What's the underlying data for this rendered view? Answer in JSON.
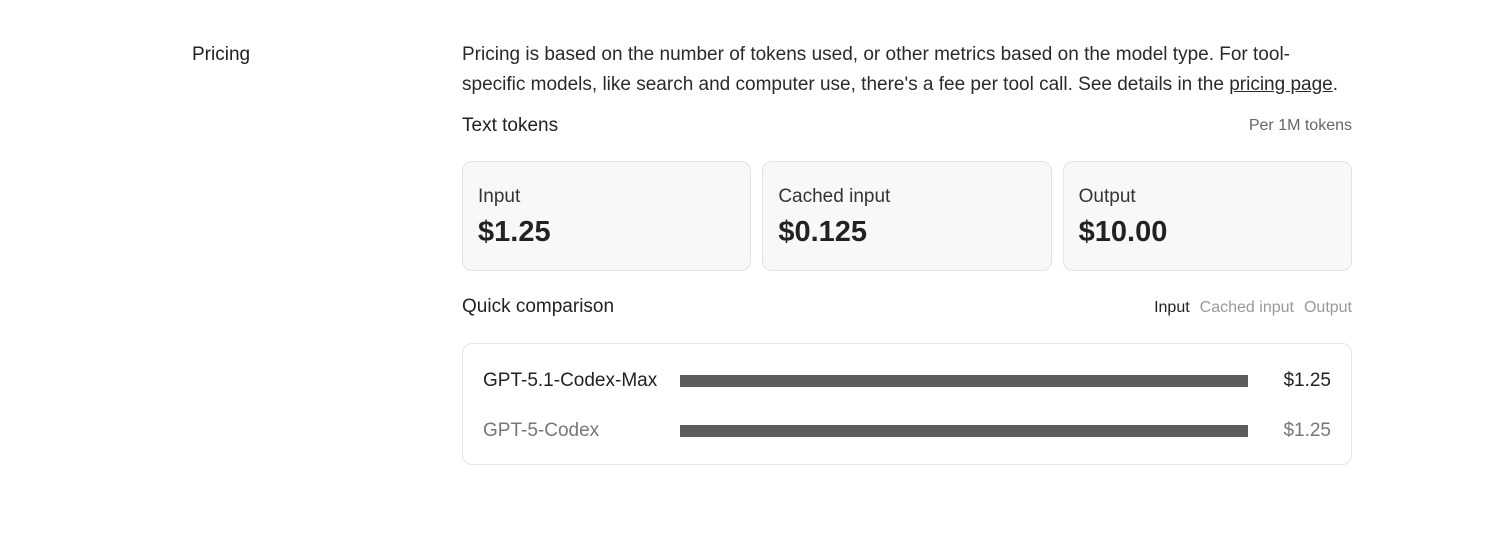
{
  "section_label": "Pricing",
  "description": {
    "text": "Pricing is based on the number of tokens used, or other metrics based on the model type. For tool-specific models, like search and computer use, there's a fee per tool call. See details in the ",
    "link": "pricing page",
    "end": "."
  },
  "text_tokens": {
    "title": "Text tokens",
    "unit": "Per 1M tokens",
    "cards": [
      {
        "label": "Input",
        "value": "$1.25"
      },
      {
        "label": "Cached input",
        "value": "$0.125"
      },
      {
        "label": "Output",
        "value": "$10.00"
      }
    ]
  },
  "comparison": {
    "title": "Quick comparison",
    "tabs": [
      "Input",
      "Cached input",
      "Output"
    ],
    "active_tab": "Input",
    "rows": [
      {
        "model": "GPT-5.1-Codex-Max",
        "price": "$1.25",
        "value": 1.25
      },
      {
        "model": "GPT-5-Codex",
        "price": "$1.25",
        "value": 1.25
      }
    ],
    "bar_color": "#5c5c5c"
  }
}
